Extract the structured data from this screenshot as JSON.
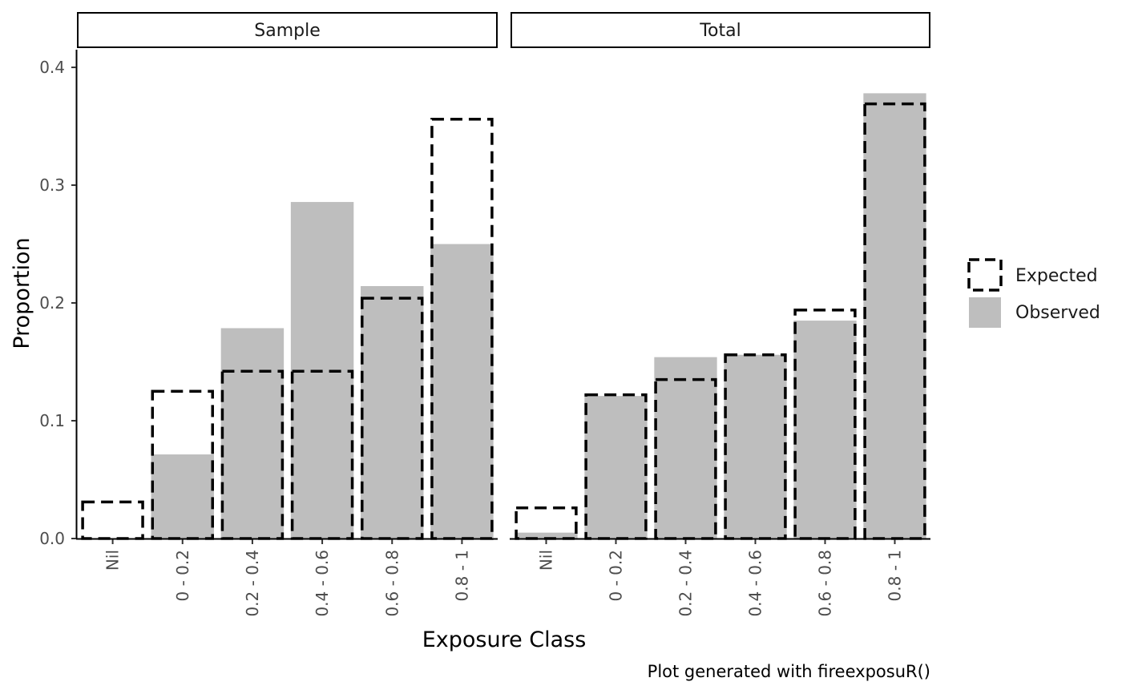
{
  "chart_data": {
    "type": "bar",
    "ylabel": "Proportion",
    "xlabel": "Exposure Class",
    "caption": "Plot generated with fireexposuR()",
    "ylim": [
      0,
      0.415
    ],
    "yticks": [
      "0.0",
      "0.1",
      "0.2",
      "0.3",
      "0.4"
    ],
    "categories": [
      "Nil",
      "0 - 0.2",
      "0.2 - 0.4",
      "0.4 - 0.6",
      "0.6 - 0.8",
      "0.8 - 1"
    ],
    "legend": {
      "position": "right",
      "items": [
        {
          "label": "Expected",
          "style": "dashed-outline"
        },
        {
          "label": "Observed",
          "style": "filled"
        }
      ]
    },
    "colors": {
      "observed": "#bebebe",
      "expected_stroke": "#000000"
    },
    "panels": [
      {
        "name": "Sample",
        "series": [
          {
            "name": "Observed",
            "values": [
              0.0,
              0.0714,
              0.1786,
              0.2857,
              0.2143,
              0.25
            ]
          },
          {
            "name": "Expected",
            "values": [
              0.031,
              0.125,
              0.142,
              0.142,
              0.204,
              0.356
            ]
          }
        ]
      },
      {
        "name": "Total",
        "series": [
          {
            "name": "Observed",
            "values": [
              0.005,
              0.121,
              0.154,
              0.156,
              0.185,
              0.378
            ]
          },
          {
            "name": "Expected",
            "values": [
              0.026,
              0.122,
              0.135,
              0.156,
              0.194,
              0.369
            ]
          }
        ]
      }
    ]
  }
}
